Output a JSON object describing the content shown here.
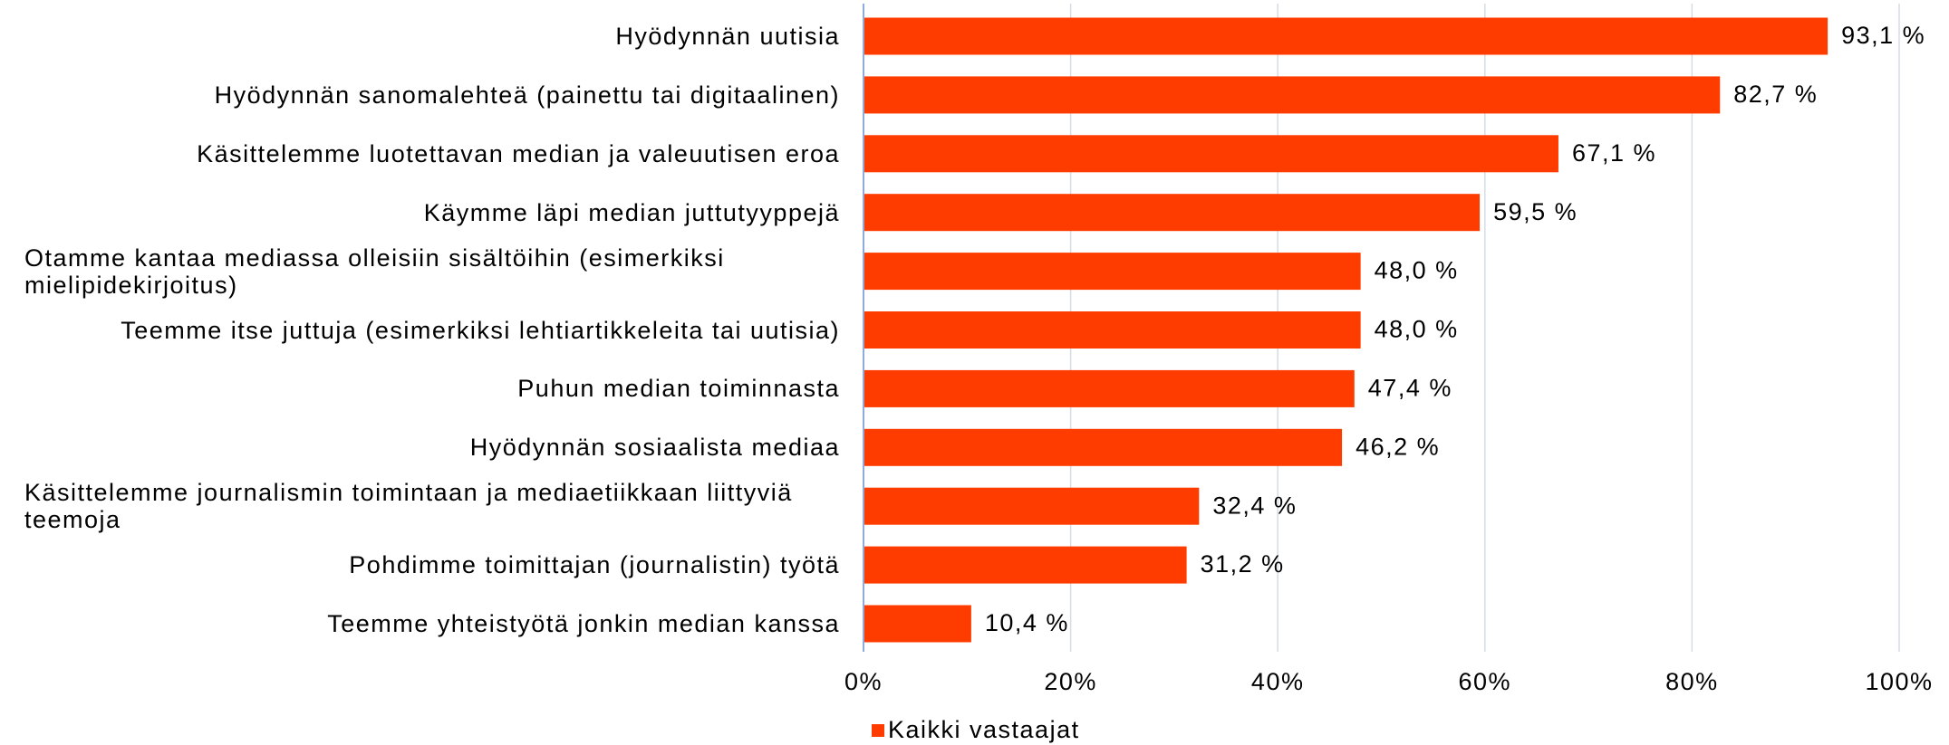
{
  "chart_data": {
    "type": "bar",
    "orientation": "horizontal",
    "categories": [
      "Hyödynnän uutisia",
      "Hyödynnän sanomalehteä (painettu tai digitaalinen)",
      "Käsittelemme luotettavan median ja valeuutisen eroa",
      "Käymme läpi median juttutyyppejä",
      "Otamme kantaa mediassa olleisiin sisältöihin (esimerkiksi mielipidekirjoitus)",
      "Teemme itse juttuja (esimerkiksi lehtiartikkeleita tai uutisia)",
      "Puhun median toiminnasta",
      "Hyödynnän sosiaalista mediaa",
      "Käsittelemme journalismin toimintaan ja mediaetiikkaan liittyviä teemoja",
      "Pohdimme toimittajan (journalistin) työtä",
      "Teemme yhteistyötä jonkin median kanssa"
    ],
    "series": [
      {
        "name": "Kaikki vastaajat",
        "color": "#ff3c00",
        "values": [
          93.1,
          82.7,
          67.1,
          59.5,
          48.0,
          48.0,
          47.4,
          46.2,
          32.4,
          31.2,
          10.4
        ],
        "value_labels": [
          "93,1 %",
          "82,7 %",
          "67,1 %",
          "59,5 %",
          "48,0 %",
          "48,0 %",
          "47,4 %",
          "46,2 %",
          "32,4 %",
          "31,2 %",
          "10,4 %"
        ]
      }
    ],
    "xlim": [
      0,
      100
    ],
    "xticks": [
      {
        "value": 0,
        "label": "0%"
      },
      {
        "value": 20,
        "label": "20%"
      },
      {
        "value": 40,
        "label": "40%"
      },
      {
        "value": 60,
        "label": "60%"
      },
      {
        "value": 80,
        "label": "80%"
      },
      {
        "value": 100,
        "label": "100%"
      }
    ],
    "grid": true,
    "legend": "bottom"
  }
}
